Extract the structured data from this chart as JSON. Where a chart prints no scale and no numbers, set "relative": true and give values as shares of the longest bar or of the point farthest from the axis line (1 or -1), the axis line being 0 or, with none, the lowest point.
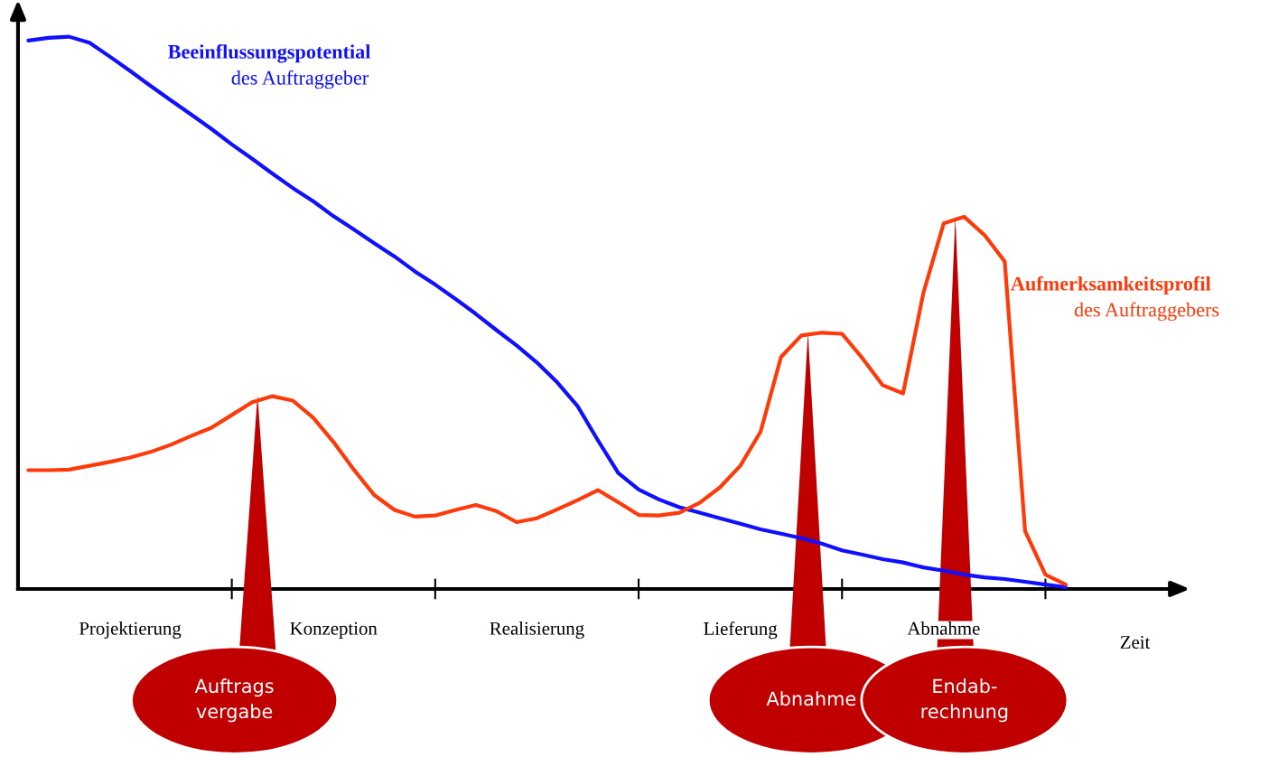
{
  "chart_data": {
    "type": "line",
    "relative": true,
    "xlabel": "Zeit",
    "categories": [
      null,
      null,
      null,
      null,
      null,
      "Projektierung",
      null,
      null,
      null,
      null,
      null,
      null,
      null,
      null,
      null,
      "Konzeption",
      null,
      null,
      null,
      null,
      null,
      null,
      null,
      null,
      null,
      "Realisierung",
      null,
      null,
      null,
      null,
      null,
      null,
      null,
      null,
      null,
      "Lieferung",
      null,
      null,
      null,
      null,
      null,
      null,
      null,
      null,
      null,
      "Abnahme",
      null,
      null,
      null,
      null,
      null,
      null
    ],
    "series": [
      {
        "name": "Beeinflussungspotential\ndes Auftraggeber",
        "color": "#1010ff",
        "values": [
          0.993,
          0.998,
          1.0,
          0.989,
          0.964,
          0.938,
          0.911,
          0.885,
          0.859,
          0.833,
          0.805,
          0.779,
          0.752,
          0.726,
          0.702,
          0.675,
          0.651,
          0.626,
          0.602,
          0.575,
          0.551,
          0.525,
          0.498,
          0.469,
          0.441,
          0.41,
          0.374,
          0.331,
          0.269,
          0.21,
          0.18,
          0.162,
          0.148,
          0.138,
          0.128,
          0.118,
          0.108,
          0.1,
          0.092,
          0.082,
          0.07,
          0.062,
          0.054,
          0.048,
          0.039,
          0.033,
          0.026,
          0.021,
          0.018,
          0.013,
          0.008,
          0.003
        ]
      },
      {
        "name": "Aufmerksamkeitsprofil\ndes Auftraggebers",
        "color": "#ff3a0a",
        "values": [
          0.215,
          0.215,
          0.216,
          0.223,
          0.23,
          0.238,
          0.248,
          0.261,
          0.277,
          0.292,
          0.315,
          0.338,
          0.349,
          0.341,
          0.31,
          0.266,
          0.216,
          0.17,
          0.143,
          0.131,
          0.133,
          0.143,
          0.152,
          0.141,
          0.121,
          0.128,
          0.144,
          0.161,
          0.179,
          0.157,
          0.134,
          0.133,
          0.138,
          0.156,
          0.184,
          0.223,
          0.285,
          0.42,
          0.459,
          0.464,
          0.462,
          0.418,
          0.369,
          0.354,
          0.536,
          0.662,
          0.674,
          0.641,
          0.593,
          0.105,
          0.026,
          0.008
        ]
      }
    ],
    "annotations": [
      "Auftrags\nvergabe",
      "Abnahme",
      "Endab-\nrechnung"
    ],
    "legend": false,
    "grid": false,
    "marker": "none",
    "line_style": "solid"
  }
}
